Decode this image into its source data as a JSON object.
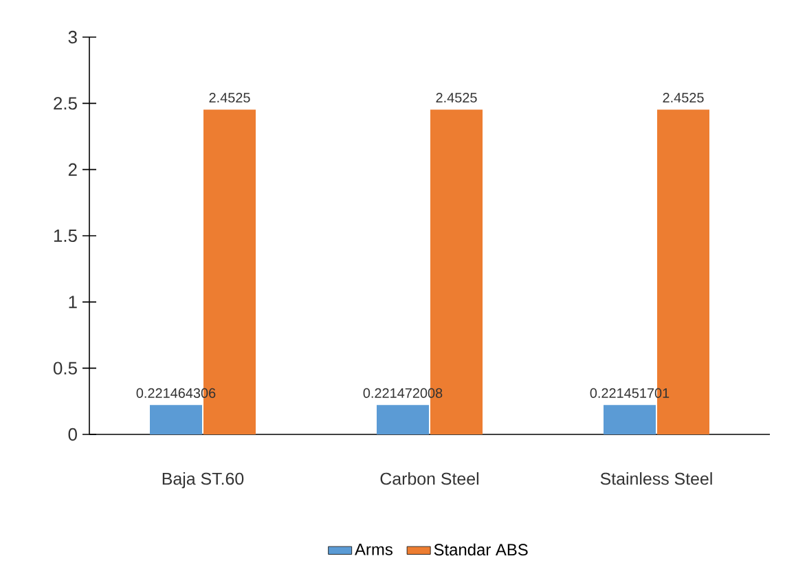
{
  "chart_data": {
    "type": "bar",
    "categories": [
      "Baja ST.60",
      "Carbon Steel",
      "Stainless Steel"
    ],
    "series": [
      {
        "name": "Arms",
        "color": "#5b9bd5",
        "values": [
          0.221464306,
          0.221472008,
          0.221451701
        ]
      },
      {
        "name": "Standar ABS",
        "color": "#ed7d31",
        "values": [
          2.4525,
          2.4525,
          2.4525
        ]
      }
    ],
    "ylim": [
      0,
      3
    ],
    "yticks": [
      0,
      0.5,
      1,
      1.5,
      2,
      2.5,
      3
    ],
    "data_labels": true,
    "legend": "bottom",
    "grid": false
  }
}
